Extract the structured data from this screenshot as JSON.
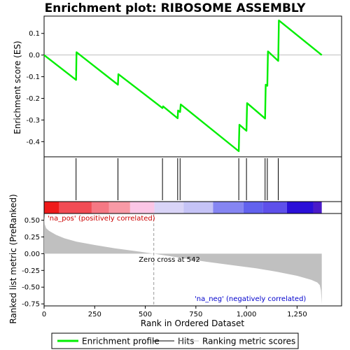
{
  "chart_data": {
    "type": "line",
    "title": "Enrichment plot: RIBOSOME ASSEMBLY",
    "x_axis": {
      "label": "Rank in Ordered Dataset",
      "range": [
        0,
        1470
      ],
      "ticks": [
        0,
        250,
        500,
        750,
        1000,
        1250
      ],
      "tick_labels": [
        "0",
        "250",
        "500",
        "750",
        "1,000",
        "1,250"
      ]
    },
    "top_panel": {
      "ylabel": "Enrichment score (ES)",
      "ylim": [
        -0.47,
        0.18
      ],
      "ticks": [
        0.1,
        0.0,
        -0.1,
        -0.2,
        -0.3,
        -0.4
      ],
      "tick_labels": [
        "0.1",
        "0.0",
        "-0.1",
        "-0.2",
        "-0.3",
        "-0.4"
      ],
      "series": [
        {
          "name": "Enrichment profile",
          "color": "#00ee00",
          "x": [
            0,
            158,
            160,
            365,
            367,
            585,
            588,
            660,
            662,
            672,
            675,
            962,
            965,
            1000,
            1003,
            1092,
            1095,
            1103,
            1106,
            1157,
            1160,
            1372
          ],
          "y": [
            0.0,
            -0.115,
            0.013,
            -0.137,
            -0.088,
            -0.245,
            -0.237,
            -0.292,
            -0.256,
            -0.263,
            -0.228,
            -0.444,
            -0.322,
            -0.35,
            -0.222,
            -0.293,
            -0.137,
            -0.142,
            0.017,
            -0.027,
            0.16,
            0.0
          ]
        }
      ]
    },
    "hits": {
      "name": "Hits",
      "positions": [
        158,
        365,
        585,
        660,
        672,
        962,
        1000,
        1092,
        1103,
        1157
      ]
    },
    "color_bar": {
      "segments": [
        {
          "from": 0,
          "to": 75,
          "color": "#ee1a1a"
        },
        {
          "from": 75,
          "to": 235,
          "color": "#f24c55"
        },
        {
          "from": 235,
          "to": 320,
          "color": "#f57884"
        },
        {
          "from": 320,
          "to": 425,
          "color": "#f89aa6"
        },
        {
          "from": 425,
          "to": 545,
          "color": "#fbc6e6"
        },
        {
          "from": 545,
          "to": 690,
          "color": "#d9d4f7"
        },
        {
          "from": 690,
          "to": 835,
          "color": "#c5c3f6"
        },
        {
          "from": 835,
          "to": 985,
          "color": "#8585f2"
        },
        {
          "from": 985,
          "to": 1080,
          "color": "#6262ee"
        },
        {
          "from": 1080,
          "to": 1200,
          "color": "#5e50ea"
        },
        {
          "from": 1200,
          "to": 1330,
          "color": "#2a10d8"
        },
        {
          "from": 1330,
          "to": 1372,
          "color": "#4a1ac8"
        }
      ]
    },
    "bottom_panel": {
      "ylabel": "Ranked list metric (PreRanked)",
      "ylim": [
        -0.78,
        0.6
      ],
      "ticks": [
        0.5,
        0.25,
        0.0,
        -0.25,
        -0.5,
        -0.75
      ],
      "tick_labels": [
        "0.50",
        "0.25",
        "0.00",
        "-0.25",
        "-0.50",
        "-0.75"
      ],
      "metric_curve": {
        "name": "Ranking metric scores",
        "color": "#c0c0c0",
        "x": [
          0,
          3,
          10,
          25,
          60,
          100,
          160,
          250,
          350,
          450,
          542,
          650,
          800,
          950,
          1050,
          1150,
          1250,
          1320,
          1350,
          1362,
          1368,
          1372
        ],
        "y": [
          0.56,
          0.44,
          0.38,
          0.34,
          0.28,
          0.23,
          0.18,
          0.13,
          0.08,
          0.04,
          0.0,
          -0.05,
          -0.12,
          -0.18,
          -0.22,
          -0.27,
          -0.33,
          -0.39,
          -0.43,
          -0.47,
          -0.55,
          -0.75
        ]
      },
      "zero_cross": 542,
      "annotations": {
        "pos": "'na_pos' (positively correlated)",
        "neg": "'na_neg' (negatively correlated)",
        "zero": "Zero cross at 542"
      }
    },
    "legend": {
      "placement": "bottom",
      "entries": [
        {
          "label": "Enrichment profile",
          "color": "#00ee00",
          "style": "line-thick"
        },
        {
          "label": "Hits",
          "color": "#000000",
          "style": "line"
        },
        {
          "label": "Ranking metric scores",
          "color": "#c0c0c0",
          "style": "line-thin"
        }
      ]
    }
  },
  "colors": {
    "enrichment": "#00ee00",
    "hit": "#000000",
    "metric_fill": "#c0c0c0",
    "pos_label": "#cc0000",
    "neg_label": "#0000cc",
    "zero_line": "#999999"
  }
}
